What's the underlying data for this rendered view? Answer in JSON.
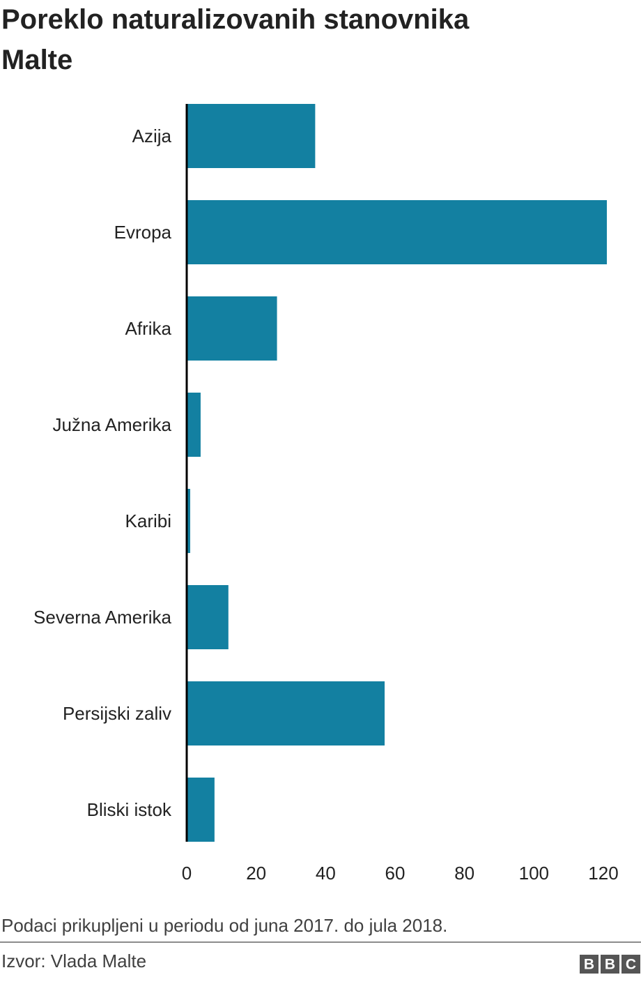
{
  "chart_data": {
    "type": "bar",
    "orientation": "horizontal",
    "title": "Poreklo naturalizovanih stanovnika Malte",
    "categories": [
      "Azija",
      "Evropa",
      "Afrika",
      "Južna Amerika",
      "Karibi",
      "Severna Amerika",
      "Persijski zaliv",
      "Bliski istok"
    ],
    "values": [
      37,
      121,
      26,
      4,
      1,
      12,
      57,
      8
    ],
    "color": "#1380a1",
    "xlim": [
      0,
      120
    ],
    "xticks": [
      0,
      20,
      40,
      60,
      80,
      100,
      120
    ],
    "note": "Podaci prikupljeni u periodu od juna 2017. do jula 2018.",
    "source": "Izvor: Vlada Malte",
    "logo": [
      "B",
      "B",
      "C"
    ]
  }
}
